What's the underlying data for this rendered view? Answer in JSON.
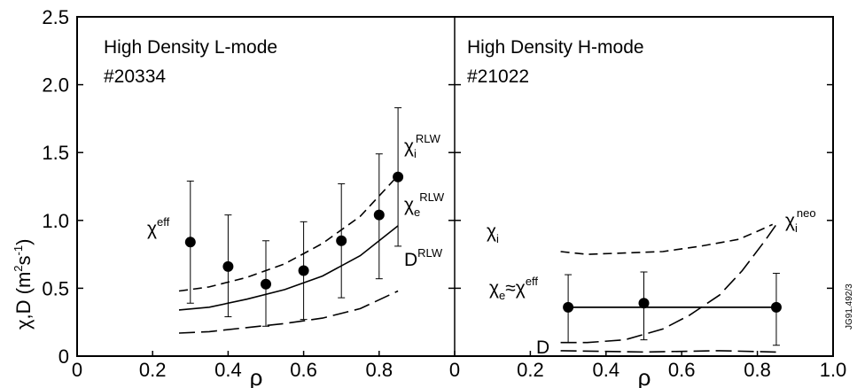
{
  "chart_data": [
    {
      "type": "scatter",
      "panel": "left",
      "title_line1": "High Density L-mode",
      "title_line2": "#20334",
      "xlabel": "ρ",
      "ylabel": "χ,D (m²s⁻¹)",
      "xlim": [
        0,
        1.0
      ],
      "ylim": [
        0,
        2.5
      ],
      "x_ticks": [
        "0",
        "0.2",
        "0.4",
        "0.6",
        "0.8"
      ],
      "y_ticks": [
        "0",
        "0.5",
        "1.0",
        "1.5",
        "2.0",
        "2.5"
      ],
      "series": [
        {
          "name": "χ^eff",
          "style": "points-with-errorbars",
          "points": [
            {
              "x": 0.3,
              "y": 0.84,
              "lo": 0.39,
              "hi": 1.29
            },
            {
              "x": 0.4,
              "y": 0.66,
              "lo": 0.29,
              "hi": 1.04
            },
            {
              "x": 0.5,
              "y": 0.53,
              "lo": 0.22,
              "hi": 0.85
            },
            {
              "x": 0.6,
              "y": 0.63,
              "lo": 0.27,
              "hi": 0.99
            },
            {
              "x": 0.7,
              "y": 0.85,
              "lo": 0.43,
              "hi": 1.27
            },
            {
              "x": 0.8,
              "y": 1.04,
              "lo": 0.57,
              "hi": 1.49
            },
            {
              "x": 0.85,
              "y": 1.32,
              "lo": 0.81,
              "hi": 1.83
            }
          ]
        },
        {
          "name": "χ_i^RLW",
          "style": "dashed",
          "x": [
            0.27,
            0.35,
            0.45,
            0.55,
            0.65,
            0.75,
            0.85
          ],
          "y": [
            0.48,
            0.51,
            0.58,
            0.68,
            0.83,
            1.03,
            1.33
          ]
        },
        {
          "name": "χ_e^RLW",
          "style": "solid",
          "x": [
            0.27,
            0.35,
            0.45,
            0.55,
            0.65,
            0.75,
            0.85
          ],
          "y": [
            0.34,
            0.36,
            0.42,
            0.49,
            0.59,
            0.74,
            0.96
          ]
        },
        {
          "name": "D^RLW",
          "style": "long-dash",
          "x": [
            0.27,
            0.35,
            0.45,
            0.55,
            0.65,
            0.75,
            0.85
          ],
          "y": [
            0.17,
            0.18,
            0.21,
            0.24,
            0.28,
            0.35,
            0.48
          ]
        }
      ]
    },
    {
      "type": "scatter",
      "panel": "right",
      "title_line1": "High Density H-mode",
      "title_line2": "#21022",
      "xlabel": "ρ",
      "xlim": [
        0,
        1.0
      ],
      "ylim": [
        0,
        2.5
      ],
      "x_ticks": [
        "0",
        "0.2",
        "0.4",
        "0.6",
        "0.8",
        "1.0"
      ],
      "series": [
        {
          "name": "χ_e≈χ^eff",
          "style": "points-with-errorbars-and-line",
          "points": [
            {
              "x": 0.3,
              "y": 0.36,
              "lo": 0.1,
              "hi": 0.6
            },
            {
              "x": 0.5,
              "y": 0.39,
              "lo": 0.12,
              "hi": 0.62
            },
            {
              "x": 0.85,
              "y": 0.36,
              "lo": 0.08,
              "hi": 0.61
            }
          ]
        },
        {
          "name": "χ_i",
          "style": "dashed",
          "x": [
            0.28,
            0.35,
            0.45,
            0.55,
            0.65,
            0.75,
            0.8,
            0.84
          ],
          "y": [
            0.77,
            0.75,
            0.76,
            0.77,
            0.81,
            0.86,
            0.92,
            0.97
          ]
        },
        {
          "name": "χ_i^neo",
          "style": "long-dash",
          "x": [
            0.28,
            0.35,
            0.45,
            0.55,
            0.62,
            0.7,
            0.76,
            0.82,
            0.85
          ],
          "y": [
            0.1,
            0.1,
            0.12,
            0.2,
            0.3,
            0.45,
            0.63,
            0.85,
            0.97
          ]
        },
        {
          "name": "D",
          "style": "long-dash",
          "x": [
            0.28,
            0.5,
            0.7,
            0.85
          ],
          "y": [
            0.04,
            0.03,
            0.04,
            0.03
          ]
        }
      ]
    }
  ],
  "labels": {
    "chi_eff_base": "χ",
    "chi_eff_sup": "eff",
    "chi_i_rlw_base": "χ",
    "chi_i_rlw_sub": "i",
    "chi_i_rlw_sup": "RLW",
    "chi_e_rlw_base": "χ",
    "chi_e_rlw_sub": "e",
    "chi_e_rlw_sup": "RLW",
    "d_rlw_base": "D",
    "d_rlw_sup": "RLW",
    "chi_i_base": "χ",
    "chi_i_sub": "i",
    "chi_i_neo_base": "χ",
    "chi_i_neo_sub": "i",
    "chi_i_neo_sup": "neo",
    "chi_e_approx_base": "χ",
    "chi_e_approx_sub": "e",
    "chi_e_approx_mid": "≈χ",
    "chi_e_approx_sup": "eff",
    "d_label": "D",
    "ylabel_text": "χ,D (m",
    "ylabel_sup2": "2",
    "ylabel_s": "s",
    "ylabel_supm1": "-1",
    "ylabel_close": ")",
    "figure_code": "JG91.492/3"
  }
}
